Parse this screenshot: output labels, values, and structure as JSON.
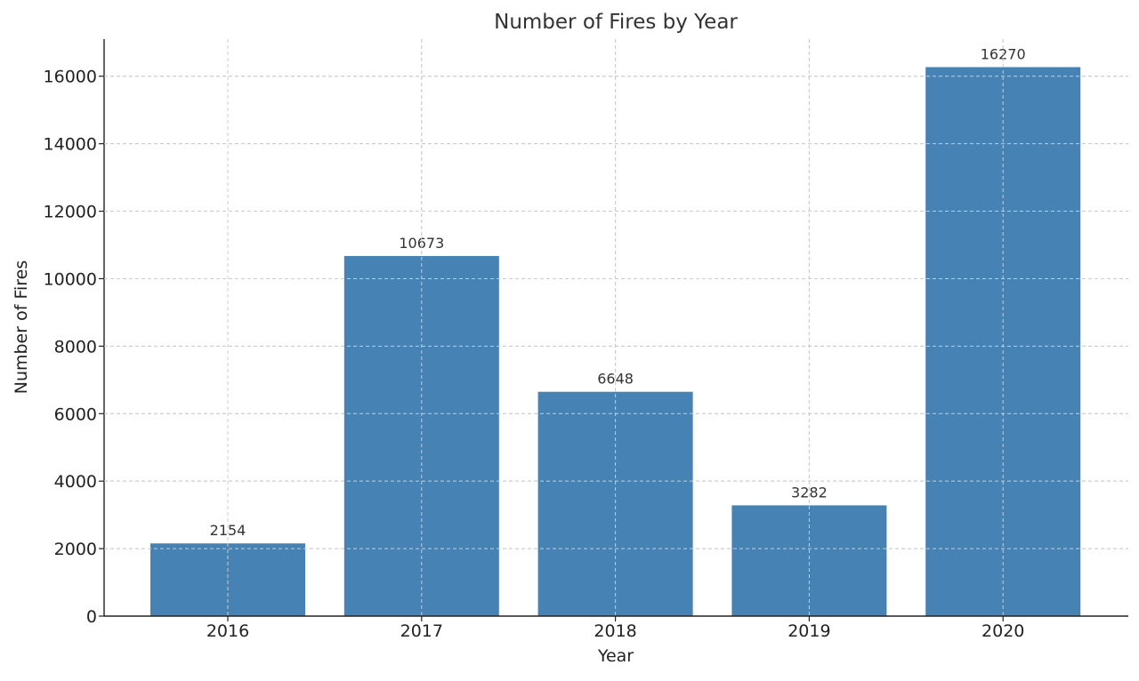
{
  "chart_data": {
    "type": "bar",
    "title": "Number of Fires by Year",
    "xlabel": "Year",
    "ylabel": "Number of Fires",
    "categories": [
      "2016",
      "2017",
      "2018",
      "2019",
      "2020"
    ],
    "values": [
      2154,
      10673,
      6648,
      3282,
      16270
    ],
    "data_labels": [
      "2154",
      "10673",
      "6648",
      "3282",
      "16270"
    ],
    "yticks": [
      0,
      2000,
      4000,
      6000,
      8000,
      10000,
      12000,
      14000,
      16000
    ],
    "ylim": [
      0,
      17100
    ],
    "grid": true,
    "bar_color": "#4682b4"
  }
}
